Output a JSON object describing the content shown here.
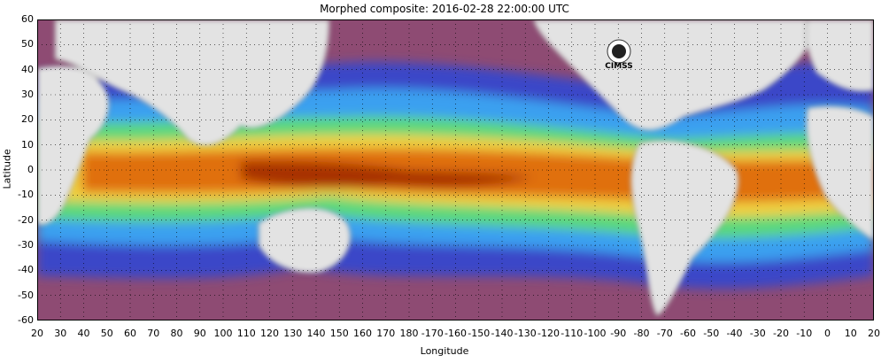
{
  "title": "Morphed composite: 2016-02-28 22:00:00 UTC",
  "axes": {
    "xlabel": "Longitude",
    "ylabel": "Latitude",
    "yticks": [
      "60",
      "50",
      "40",
      "30",
      "20",
      "10",
      "0",
      "-10",
      "-20",
      "-30",
      "-40",
      "-50",
      "-60"
    ],
    "xticks": [
      "20",
      "30",
      "40",
      "50",
      "60",
      "70",
      "80",
      "90",
      "100",
      "110",
      "120",
      "130",
      "140",
      "150",
      "160",
      "170",
      "180",
      "-170",
      "-160",
      "-150",
      "-140",
      "-130",
      "-120",
      "-110",
      "-100",
      "-90",
      "-80",
      "-70",
      "-60",
      "-50",
      "-40",
      "-30",
      "-20",
      "-10",
      "0",
      "10",
      "20"
    ]
  },
  "logo": {
    "text": "CIMSS",
    "name": "cimss-logo"
  },
  "colors": {
    "land": "#e3e3e3",
    "dry": "#8e4b73",
    "low": "#3b46c8",
    "moderate": "#3aa0f0",
    "mid": "#5cd87c",
    "high": "#f0d040",
    "very_high": "#e07010",
    "saturated": "#a83000"
  }
}
